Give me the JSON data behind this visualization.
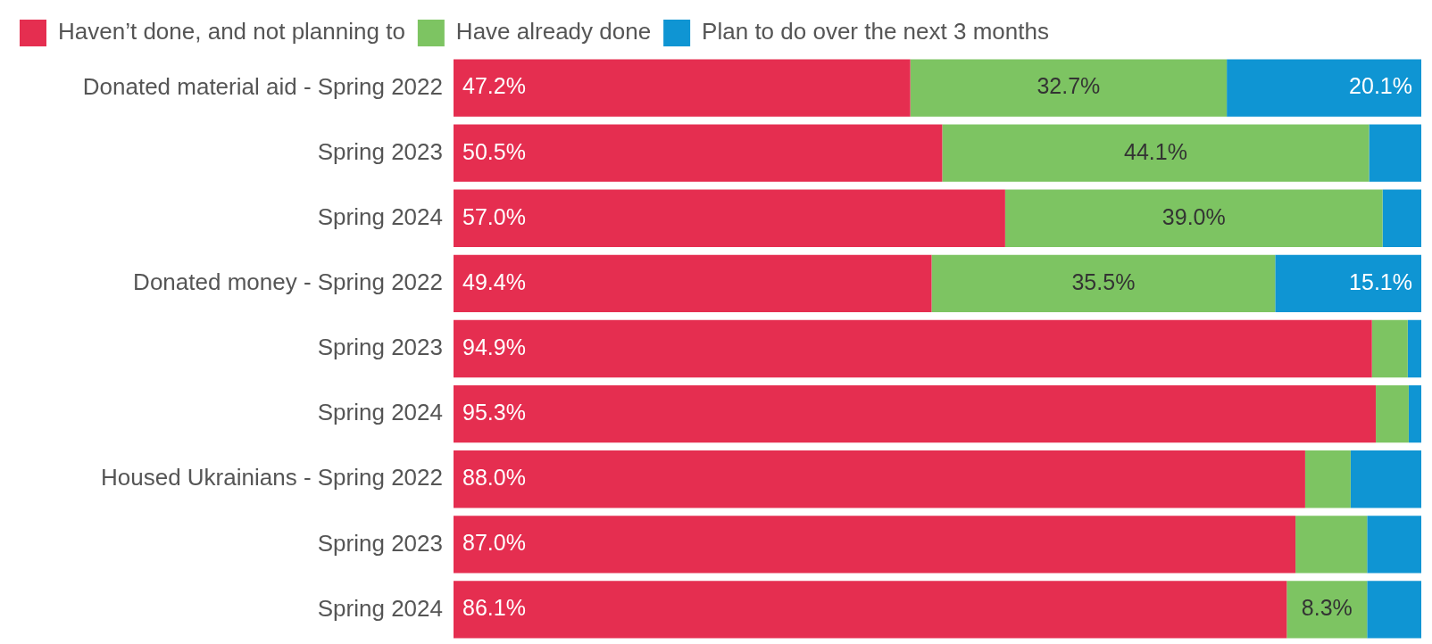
{
  "chart_data": {
    "type": "bar",
    "orientation": "horizontal",
    "stacked": true,
    "legend": "top left",
    "categories": [
      "Donated material aid - Spring 2022",
      "Spring 2023",
      "Spring 2024",
      "Donated money - Spring 2022",
      "Spring 2023",
      "Spring 2024",
      "Housed Ukrainians - Spring 2022",
      "Spring 2023",
      "Spring 2024"
    ],
    "series": [
      {
        "name": "Haven’t done, and not planning to",
        "color": "#e52e50",
        "values": [
          47.2,
          50.5,
          57.0,
          49.4,
          94.9,
          95.3,
          88.0,
          87.0,
          86.1
        ],
        "value_labels": [
          "47.2%",
          "50.5%",
          "57.0%",
          "49.4%",
          "94.9%",
          "95.3%",
          "88.0%",
          "87.0%",
          "86.1%"
        ]
      },
      {
        "name": "Have already done",
        "color": "#7dc462",
        "values": [
          32.7,
          44.1,
          39.0,
          35.5,
          3.7,
          3.4,
          4.7,
          7.4,
          8.3
        ],
        "value_labels": [
          "32.7%",
          "44.1%",
          "39.0%",
          "35.5%",
          null,
          null,
          null,
          null,
          "8.3%"
        ]
      },
      {
        "name": "Plan to do over the next 3 months",
        "color": "#0f95d3",
        "values": [
          20.1,
          5.4,
          4.0,
          15.1,
          1.4,
          1.3,
          7.3,
          5.6,
          5.6
        ],
        "value_labels": [
          "20.1%",
          null,
          null,
          "15.1%",
          null,
          null,
          null,
          null,
          null
        ]
      }
    ]
  }
}
